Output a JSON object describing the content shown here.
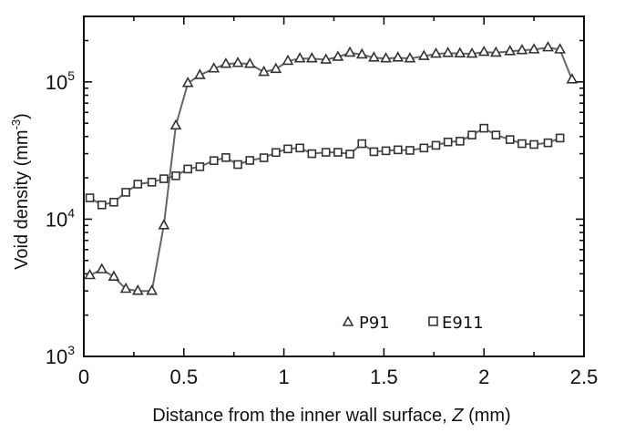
{
  "chart_data": {
    "type": "line",
    "xlabel": {
      "prefix": "Distance from the inner wall surface, ",
      "var": "Z",
      "suffix": " (mm)"
    },
    "ylabel": {
      "main": "Void density (mm",
      "sup": "-3",
      "close": ")"
    },
    "xlim": [
      0,
      2.5
    ],
    "ylim": [
      1000,
      300000
    ],
    "yscale": "log",
    "xticks": [
      {
        "value": 0,
        "label": "0"
      },
      {
        "value": 0.5,
        "label": "0.5"
      },
      {
        "value": 1,
        "label": "1"
      },
      {
        "value": 1.5,
        "label": "1.5"
      },
      {
        "value": 2,
        "label": "2"
      },
      {
        "value": 2.5,
        "label": "2.5"
      }
    ],
    "yticks": [
      {
        "value": 1000,
        "base": "10",
        "exp": "3"
      },
      {
        "value": 10000,
        "base": "10",
        "exp": "4"
      },
      {
        "value": 100000,
        "base": "10",
        "exp": "5"
      }
    ],
    "grid": false,
    "legend": {
      "position": "bottom-right"
    },
    "series": [
      {
        "name": "P91",
        "marker": "triangle",
        "color": "#666666",
        "points": [
          [
            0.03,
            3900
          ],
          [
            0.09,
            4300
          ],
          [
            0.15,
            3800
          ],
          [
            0.21,
            3100
          ],
          [
            0.27,
            3000
          ],
          [
            0.34,
            3000
          ],
          [
            0.4,
            9000
          ],
          [
            0.46,
            48000
          ],
          [
            0.52,
            98000
          ],
          [
            0.58,
            112000
          ],
          [
            0.65,
            125000
          ],
          [
            0.71,
            135000
          ],
          [
            0.77,
            137000
          ],
          [
            0.83,
            135000
          ],
          [
            0.9,
            118000
          ],
          [
            0.96,
            124000
          ],
          [
            1.02,
            142000
          ],
          [
            1.08,
            148000
          ],
          [
            1.14,
            148000
          ],
          [
            1.21,
            145000
          ],
          [
            1.27,
            152000
          ],
          [
            1.33,
            163000
          ],
          [
            1.39,
            158000
          ],
          [
            1.45,
            150000
          ],
          [
            1.51,
            148000
          ],
          [
            1.57,
            150000
          ],
          [
            1.63,
            148000
          ],
          [
            1.7,
            154000
          ],
          [
            1.76,
            160000
          ],
          [
            1.82,
            162000
          ],
          [
            1.88,
            161000
          ],
          [
            1.94,
            160000
          ],
          [
            2.0,
            165000
          ],
          [
            2.06,
            163000
          ],
          [
            2.13,
            167000
          ],
          [
            2.19,
            170000
          ],
          [
            2.25,
            172000
          ],
          [
            2.32,
            178000
          ],
          [
            2.38,
            172000
          ],
          [
            2.44,
            104000
          ]
        ]
      },
      {
        "name": "E911",
        "marker": "square",
        "color": "#666666",
        "points": [
          [
            0.03,
            14300
          ],
          [
            0.09,
            12700
          ],
          [
            0.15,
            13300
          ],
          [
            0.21,
            15700
          ],
          [
            0.27,
            18000
          ],
          [
            0.34,
            18600
          ],
          [
            0.4,
            19700
          ],
          [
            0.46,
            20700
          ],
          [
            0.52,
            23200
          ],
          [
            0.58,
            24100
          ],
          [
            0.65,
            26700
          ],
          [
            0.71,
            28100
          ],
          [
            0.77,
            25000
          ],
          [
            0.83,
            26800
          ],
          [
            0.9,
            28000
          ],
          [
            0.96,
            30600
          ],
          [
            1.02,
            32500
          ],
          [
            1.08,
            33000
          ],
          [
            1.14,
            30000
          ],
          [
            1.21,
            30700
          ],
          [
            1.27,
            30700
          ],
          [
            1.33,
            29800
          ],
          [
            1.39,
            35500
          ],
          [
            1.45,
            31000
          ],
          [
            1.51,
            31500
          ],
          [
            1.57,
            32000
          ],
          [
            1.63,
            31700
          ],
          [
            1.7,
            33000
          ],
          [
            1.76,
            34500
          ],
          [
            1.82,
            36500
          ],
          [
            1.88,
            37000
          ],
          [
            1.94,
            41000
          ],
          [
            2.0,
            46000
          ],
          [
            2.06,
            41000
          ],
          [
            2.13,
            38000
          ],
          [
            2.19,
            35500
          ],
          [
            2.25,
            35000
          ],
          [
            2.32,
            36000
          ],
          [
            2.38,
            39000
          ]
        ]
      }
    ]
  }
}
